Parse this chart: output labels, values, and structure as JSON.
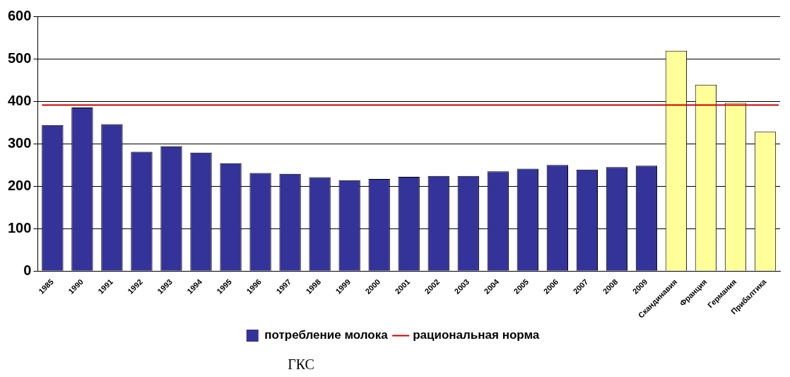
{
  "chart_data": {
    "type": "bar",
    "categories": [
      "1985",
      "1990",
      "1991",
      "1992",
      "1993",
      "1994",
      "1995",
      "1996",
      "1997",
      "1998",
      "1999",
      "2000",
      "2001",
      "2002",
      "2003",
      "2004",
      "2005",
      "2006",
      "2007",
      "2008",
      "2009",
      "Скандинавия",
      "Франция",
      "Германия",
      "Прибалтика"
    ],
    "series": [
      {
        "name": "потребление молока",
        "color": "#333399",
        "colors": [
          "#333399",
          "#333399",
          "#333399",
          "#333399",
          "#333399",
          "#333399",
          "#333399",
          "#333399",
          "#333399",
          "#333399",
          "#333399",
          "#333399",
          "#333399",
          "#333399",
          "#333399",
          "#333399",
          "#333399",
          "#333399",
          "#333399",
          "#333399",
          "#333399",
          "#ffff99",
          "#ffff99",
          "#ffff99",
          "#ffff99"
        ],
        "values": [
          344,
          385,
          346,
          281,
          294,
          279,
          254,
          231,
          229,
          221,
          214,
          217,
          222,
          224,
          224,
          235,
          241,
          250,
          239,
          245,
          248,
          519,
          439,
          396,
          328
        ]
      }
    ],
    "ylim": [
      0,
      600
    ],
    "yticks": [
      0,
      100,
      200,
      300,
      400,
      500,
      600
    ],
    "grid": "y",
    "legend": "bottom",
    "ref_lines": [
      {
        "axis": "y",
        "value": 391,
        "label": "рациональная норма",
        "color": "#cc0000"
      }
    ],
    "annotations": [
      "ГКС"
    ]
  }
}
